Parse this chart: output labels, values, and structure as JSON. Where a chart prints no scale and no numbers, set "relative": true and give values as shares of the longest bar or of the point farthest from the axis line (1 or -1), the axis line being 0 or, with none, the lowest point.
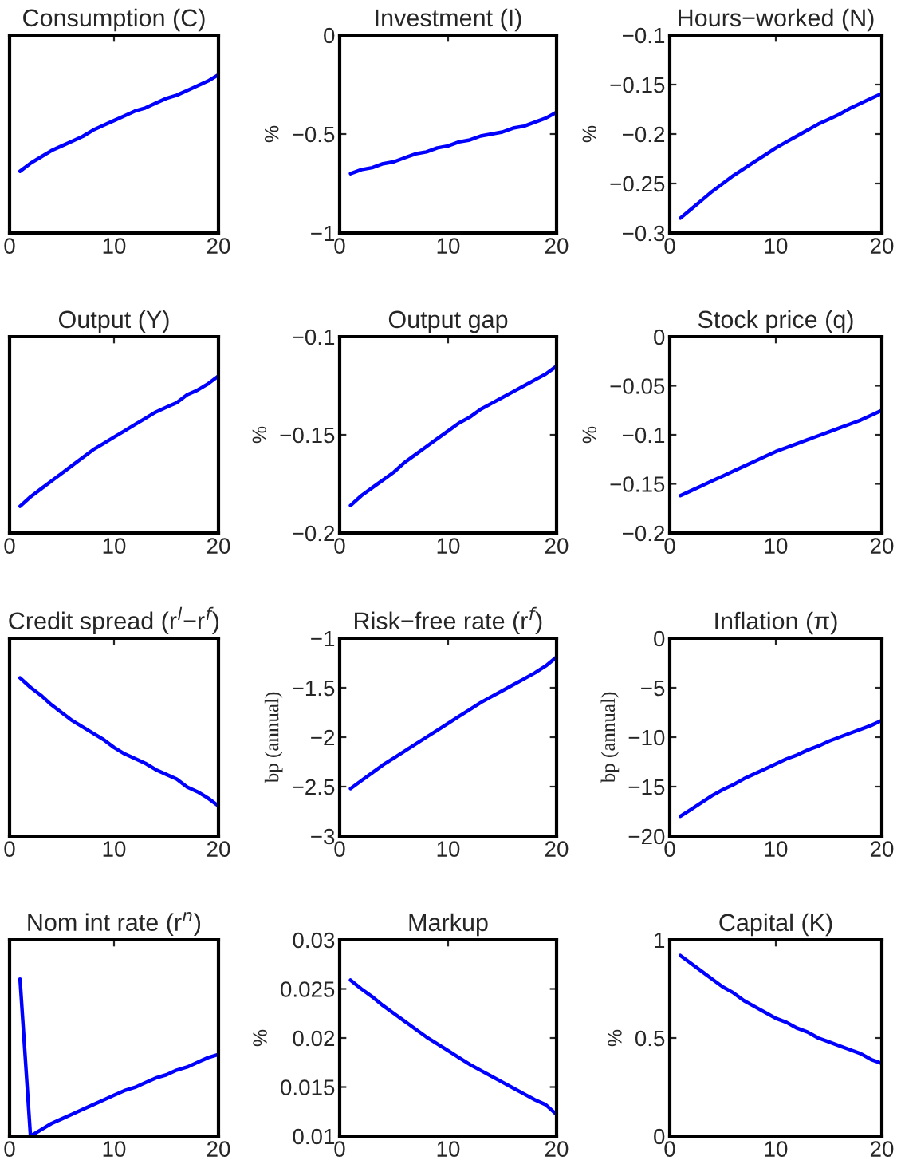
{
  "chart_data": [
    {
      "type": "line",
      "title": "Consumption (C)",
      "relative": true,
      "tick_labels": "x",
      "grid": false,
      "xlim": [
        0,
        20
      ],
      "xticks": [
        0,
        10,
        20
      ],
      "x": [
        1,
        2,
        3,
        4,
        5,
        6,
        7,
        8,
        9,
        10,
        11,
        12,
        13,
        14,
        15,
        16,
        17,
        18,
        19,
        20
      ],
      "series": [
        {
          "color": "#0000ff",
          "values": [
            0.39,
            0.44,
            0.48,
            0.52,
            0.55,
            0.58,
            0.61,
            0.65,
            0.68,
            0.71,
            0.74,
            0.77,
            0.79,
            0.82,
            0.85,
            0.87,
            0.9,
            0.93,
            0.96,
            1
          ]
        }
      ]
    },
    {
      "type": "line",
      "title": "Investment (I)",
      "ylabel": "%",
      "grid": false,
      "xlim": [
        0,
        20
      ],
      "xticks": [
        0,
        10,
        20
      ],
      "ylim": [
        -1,
        0
      ],
      "yticks": [
        -1,
        -0.5,
        0
      ],
      "x": [
        1,
        2,
        3,
        4,
        5,
        6,
        7,
        8,
        9,
        10,
        11,
        12,
        13,
        14,
        15,
        16,
        17,
        18,
        19,
        20
      ],
      "series": [
        {
          "color": "#0000ff",
          "values": [
            -0.7,
            -0.68,
            -0.67,
            -0.65,
            -0.64,
            -0.62,
            -0.6,
            -0.59,
            -0.57,
            -0.56,
            -0.54,
            -0.53,
            -0.51,
            -0.5,
            -0.49,
            -0.47,
            -0.46,
            -0.44,
            -0.42,
            -0.39
          ]
        }
      ]
    },
    {
      "type": "line",
      "title": "Hours−worked (N)",
      "ylabel": "%",
      "grid": false,
      "xlim": [
        0,
        20
      ],
      "xticks": [
        0,
        10,
        20
      ],
      "ylim": [
        -0.3,
        -0.1
      ],
      "yticks": [
        -0.3,
        -0.25,
        -0.2,
        -0.15,
        -0.1
      ],
      "x": [
        1,
        2,
        3,
        4,
        5,
        6,
        7,
        8,
        9,
        10,
        11,
        12,
        13,
        14,
        15,
        16,
        17,
        18,
        19,
        20
      ],
      "series": [
        {
          "color": "#0000ff",
          "values": [
            -0.285,
            -0.276,
            -0.267,
            -0.258,
            -0.25,
            -0.242,
            -0.235,
            -0.228,
            -0.221,
            -0.214,
            -0.208,
            -0.202,
            -0.196,
            -0.19,
            -0.185,
            -0.18,
            -0.174,
            -0.169,
            -0.164,
            -0.159
          ]
        }
      ]
    },
    {
      "type": "line",
      "title": "Output (Y)",
      "relative": true,
      "tick_labels": "x",
      "grid": false,
      "xlim": [
        0,
        20
      ],
      "xticks": [
        0,
        10,
        20
      ],
      "x": [
        1,
        2,
        3,
        4,
        5,
        6,
        7,
        8,
        9,
        10,
        11,
        12,
        13,
        14,
        15,
        16,
        17,
        18,
        19,
        20
      ],
      "series": [
        {
          "color": "#0000ff",
          "values": [
            0.17,
            0.23,
            0.28,
            0.33,
            0.38,
            0.43,
            0.48,
            0.53,
            0.57,
            0.61,
            0.65,
            0.69,
            0.73,
            0.77,
            0.8,
            0.83,
            0.88,
            0.91,
            0.95,
            1
          ]
        }
      ]
    },
    {
      "type": "line",
      "title": "Output gap",
      "ylabel": "%",
      "grid": false,
      "xlim": [
        0,
        20
      ],
      "xticks": [
        0,
        10,
        20
      ],
      "ylim": [
        -0.2,
        -0.1
      ],
      "yticks": [
        -0.2,
        -0.15,
        -0.1
      ],
      "x": [
        1,
        2,
        3,
        4,
        5,
        6,
        7,
        8,
        9,
        10,
        11,
        12,
        13,
        14,
        15,
        16,
        17,
        18,
        19,
        20
      ],
      "series": [
        {
          "color": "#0000ff",
          "values": [
            -0.186,
            -0.181,
            -0.177,
            -0.173,
            -0.169,
            -0.164,
            -0.16,
            -0.156,
            -0.152,
            -0.148,
            -0.144,
            -0.141,
            -0.137,
            -0.134,
            -0.131,
            -0.128,
            -0.125,
            -0.122,
            -0.119,
            -0.115
          ]
        }
      ]
    },
    {
      "type": "line",
      "title": "Stock price (q)",
      "ylabel": "%",
      "grid": false,
      "xlim": [
        0,
        20
      ],
      "xticks": [
        0,
        10,
        20
      ],
      "ylim": [
        -0.2,
        0
      ],
      "yticks": [
        -0.2,
        -0.15,
        -0.1,
        -0.05,
        0
      ],
      "x": [
        1,
        2,
        3,
        4,
        5,
        6,
        7,
        8,
        9,
        10,
        11,
        12,
        13,
        14,
        15,
        16,
        17,
        18,
        19,
        20
      ],
      "series": [
        {
          "color": "#0000ff",
          "values": [
            -0.162,
            -0.157,
            -0.152,
            -0.147,
            -0.142,
            -0.137,
            -0.132,
            -0.127,
            -0.122,
            -0.117,
            -0.113,
            -0.109,
            -0.105,
            -0.101,
            -0.097,
            -0.093,
            -0.089,
            -0.085,
            -0.08,
            -0.075
          ]
        }
      ]
    },
    {
      "type": "line",
      "title": "Credit spread (r$^{l}$−r$^{f}$)",
      "relative": true,
      "tick_labels": "x",
      "grid": false,
      "xlim": [
        0,
        20
      ],
      "xticks": [
        0,
        10,
        20
      ],
      "x": [
        1,
        2,
        3,
        4,
        5,
        6,
        7,
        8,
        9,
        10,
        11,
        12,
        13,
        14,
        15,
        16,
        17,
        18,
        19,
        20
      ],
      "series": [
        {
          "color": "#0000ff",
          "values": [
            1,
            0.94,
            0.89,
            0.83,
            0.78,
            0.73,
            0.69,
            0.65,
            0.61,
            0.56,
            0.52,
            0.49,
            0.46,
            0.42,
            0.39,
            0.36,
            0.31,
            0.28,
            0.24,
            0.19
          ]
        }
      ]
    },
    {
      "type": "line",
      "title": "Risk−free rate (r$^{f}$)",
      "ylabel": "bp (annual)",
      "grid": false,
      "xlim": [
        0,
        20
      ],
      "xticks": [
        0,
        10,
        20
      ],
      "ylim": [
        -3,
        -1
      ],
      "yticks": [
        -3,
        -2.5,
        -2,
        -1.5,
        -1
      ],
      "x": [
        1,
        2,
        3,
        4,
        5,
        6,
        7,
        8,
        9,
        10,
        11,
        12,
        13,
        14,
        15,
        16,
        17,
        18,
        19,
        20
      ],
      "series": [
        {
          "color": "#0000ff",
          "values": [
            -2.52,
            -2.44,
            -2.36,
            -2.28,
            -2.21,
            -2.14,
            -2.07,
            -2.0,
            -1.93,
            -1.86,
            -1.79,
            -1.72,
            -1.65,
            -1.59,
            -1.53,
            -1.47,
            -1.41,
            -1.35,
            -1.28,
            -1.19
          ]
        }
      ]
    },
    {
      "type": "line",
      "title": "Inflation (π)",
      "ylabel": "bp (annual)",
      "grid": false,
      "xlim": [
        0,
        20
      ],
      "xticks": [
        0,
        10,
        20
      ],
      "ylim": [
        -20,
        0
      ],
      "yticks": [
        -20,
        -15,
        -10,
        -5,
        0
      ],
      "x": [
        1,
        2,
        3,
        4,
        5,
        6,
        7,
        8,
        9,
        10,
        11,
        12,
        13,
        14,
        15,
        16,
        17,
        18,
        19,
        20
      ],
      "series": [
        {
          "color": "#0000ff",
          "values": [
            -18.0,
            -17.3,
            -16.6,
            -15.9,
            -15.3,
            -14.8,
            -14.2,
            -13.7,
            -13.2,
            -12.7,
            -12.2,
            -11.8,
            -11.3,
            -10.9,
            -10.4,
            -10.0,
            -9.6,
            -9.2,
            -8.8,
            -8.3
          ]
        }
      ]
    },
    {
      "type": "line",
      "title": "Nom int rate (r$^{n}$)",
      "relative": true,
      "tick_labels": "x",
      "grid": false,
      "xlim": [
        0,
        20
      ],
      "xticks": [
        0,
        10,
        20
      ],
      "series": [
        {
          "color": "#0000ff",
          "x": [
            1,
            2,
            3,
            4,
            5,
            6,
            7,
            8,
            9,
            10,
            11,
            12,
            13,
            14,
            15,
            16,
            17,
            18,
            19,
            20
          ],
          "values": [
            1,
            0,
            0.04,
            0.08,
            0.11,
            0.14,
            0.17,
            0.2,
            0.23,
            0.26,
            0.29,
            0.31,
            0.34,
            0.37,
            0.39,
            0.42,
            0.44,
            0.47,
            0.5,
            0.52
          ]
        }
      ]
    },
    {
      "type": "line",
      "title": "Markup",
      "ylabel": "%",
      "grid": false,
      "xlim": [
        0,
        20
      ],
      "xticks": [
        0,
        10,
        20
      ],
      "ylim": [
        0.01,
        0.03
      ],
      "yticks": [
        0.01,
        0.015,
        0.02,
        0.025,
        0.03
      ],
      "x": [
        1,
        2,
        3,
        4,
        5,
        6,
        7,
        8,
        9,
        10,
        11,
        12,
        13,
        14,
        15,
        16,
        17,
        18,
        19,
        20
      ],
      "series": [
        {
          "color": "#0000ff",
          "values": [
            0.0259,
            0.025,
            0.0242,
            0.0233,
            0.0225,
            0.0217,
            0.0209,
            0.0201,
            0.0194,
            0.0187,
            0.018,
            0.0173,
            0.0167,
            0.0161,
            0.0155,
            0.0149,
            0.0143,
            0.0137,
            0.0132,
            0.0122
          ]
        }
      ]
    },
    {
      "type": "line",
      "title": "Capital (K)",
      "ylabel": "%",
      "grid": false,
      "xlim": [
        0,
        20
      ],
      "xticks": [
        0,
        10,
        20
      ],
      "ylim": [
        0,
        1
      ],
      "yticks": [
        0,
        0.5,
        1
      ],
      "x": [
        1,
        2,
        3,
        4,
        5,
        6,
        7,
        8,
        9,
        10,
        11,
        12,
        13,
        14,
        15,
        16,
        17,
        18,
        19,
        20
      ],
      "series": [
        {
          "color": "#0000ff",
          "values": [
            0.92,
            0.88,
            0.84,
            0.8,
            0.76,
            0.73,
            0.69,
            0.66,
            0.63,
            0.6,
            0.58,
            0.55,
            0.53,
            0.5,
            0.48,
            0.46,
            0.44,
            0.42,
            0.39,
            0.37
          ]
        }
      ]
    }
  ]
}
